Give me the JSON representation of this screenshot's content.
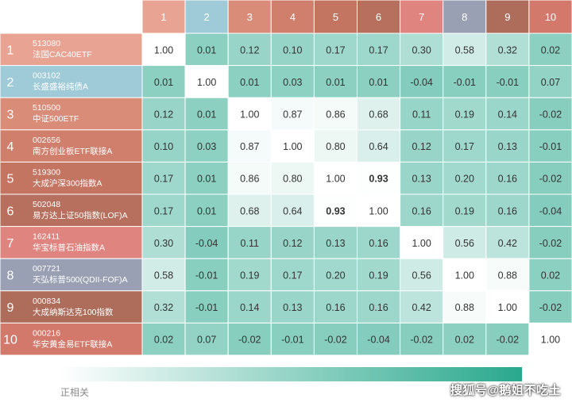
{
  "chart_data": {
    "type": "heatmap",
    "column_labels": [
      "1",
      "2",
      "3",
      "4",
      "5",
      "6",
      "7",
      "8",
      "9",
      "10"
    ],
    "rows": [
      {
        "index": "1",
        "code": "513080",
        "name": "法国CAC40ETF"
      },
      {
        "index": "2",
        "code": "003102",
        "name": "长盛盛裕纯债A"
      },
      {
        "index": "3",
        "code": "510500",
        "name": "中证500ETF"
      },
      {
        "index": "4",
        "code": "002656",
        "name": "南方创业板ETF联接A"
      },
      {
        "index": "5",
        "code": "519300",
        "name": "大成沪深300指数A"
      },
      {
        "index": "6",
        "code": "502048",
        "name": "易方达上证50指数(LOF)A"
      },
      {
        "index": "7",
        "code": "162411",
        "name": "华宝标普石油指数A"
      },
      {
        "index": "8",
        "code": "007721",
        "name": "天弘标普500(QDII-FOF)A"
      },
      {
        "index": "9",
        "code": "000834",
        "name": "大成纳斯达克100指数"
      },
      {
        "index": "10",
        "code": "000216",
        "name": "华安黄金易ETF联接A"
      }
    ],
    "values": [
      [
        "1.00",
        "0.01",
        "0.12",
        "0.10",
        "0.17",
        "0.17",
        "0.30",
        "0.58",
        "0.32",
        "0.02"
      ],
      [
        "0.01",
        "1.00",
        "0.01",
        "0.03",
        "0.01",
        "0.01",
        "-0.04",
        "-0.01",
        "-0.01",
        "0.07"
      ],
      [
        "0.12",
        "0.01",
        "1.00",
        "0.87",
        "0.86",
        "0.68",
        "0.11",
        "0.19",
        "0.14",
        "-0.02"
      ],
      [
        "0.10",
        "0.03",
        "0.87",
        "1.00",
        "0.80",
        "0.64",
        "0.12",
        "0.17",
        "0.13",
        "-0.01"
      ],
      [
        "0.17",
        "0.01",
        "0.86",
        "0.80",
        "1.00",
        "0.93",
        "0.13",
        "0.20",
        "0.16",
        "-0.02"
      ],
      [
        "0.17",
        "0.01",
        "0.68",
        "0.64",
        "0.93",
        "1.00",
        "0.16",
        "0.19",
        "0.16",
        "-0.04"
      ],
      [
        "0.30",
        "-0.04",
        "0.11",
        "0.12",
        "0.13",
        "0.16",
        "1.00",
        "0.56",
        "0.42",
        "-0.02"
      ],
      [
        "0.58",
        "-0.01",
        "0.19",
        "0.17",
        "0.20",
        "0.19",
        "0.56",
        "1.00",
        "0.88",
        "0.02"
      ],
      [
        "0.32",
        "-0.01",
        "0.14",
        "0.13",
        "0.16",
        "0.16",
        "0.42",
        "0.88",
        "1.00",
        "-0.02"
      ],
      [
        "0.02",
        "0.07",
        "-0.02",
        "-0.01",
        "-0.02",
        "-0.04",
        "-0.02",
        "0.02",
        "-0.02",
        "1.00"
      ]
    ],
    "bold_values": [
      "0.93"
    ],
    "label_colors": [
      "#e8a393",
      "#9fcad7",
      "#d98c78",
      "#d07f6c",
      "#c47562",
      "#b8705e",
      "#e0847f",
      "#9aa0b4",
      "#ae6c5b",
      "#d2796c"
    ],
    "legend": {
      "label": "正相关",
      "placement": "bottom",
      "color_low": "#ffffff",
      "color_high": "#29a88d"
    }
  },
  "watermark": "搜狐号@鹅姐不吃土"
}
